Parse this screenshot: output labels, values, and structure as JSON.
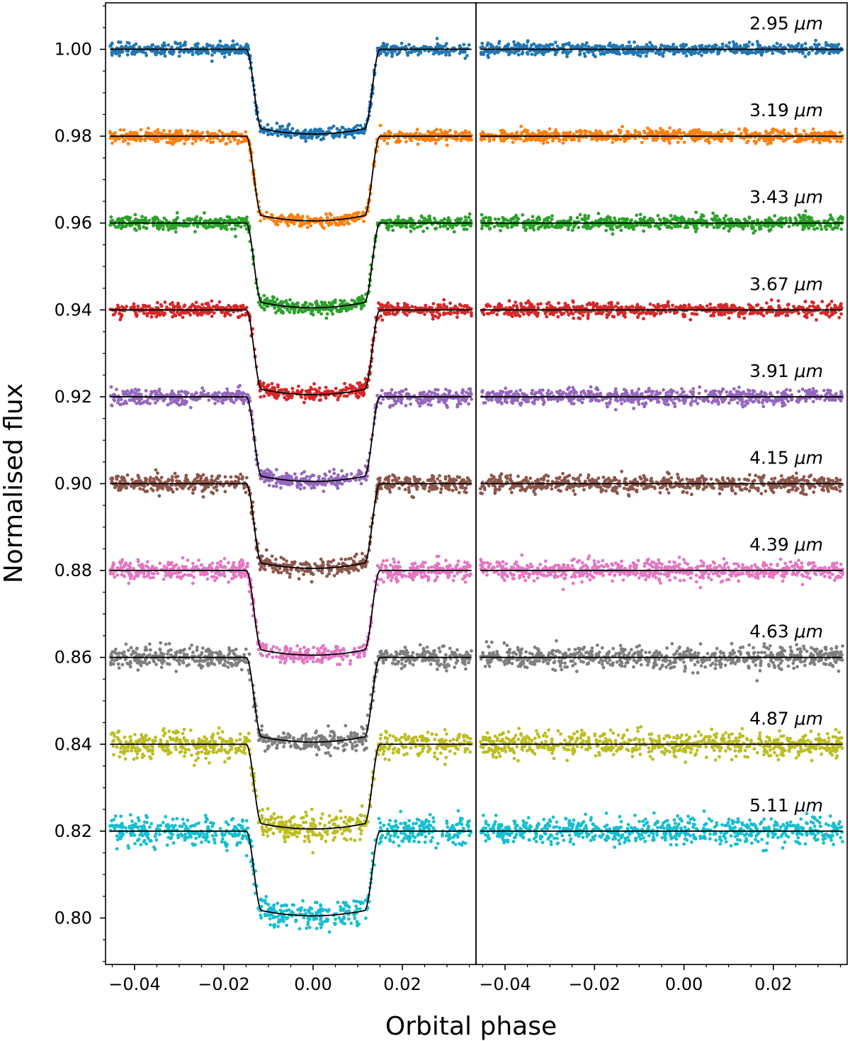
{
  "chart_data": {
    "type": "scatter",
    "ylabel": "Normalised flux",
    "xlabel": "Orbital phase",
    "ylim": [
      0.7893,
      1.0107
    ],
    "grid": false,
    "panels": [
      {
        "name": "transit",
        "xlim": [
          -0.0465,
          0.0365
        ]
      },
      {
        "name": "comparison",
        "xlim": [
          -0.0465,
          0.0365
        ]
      }
    ],
    "x_ticks": [
      "−0.04",
      "−0.02",
      "0.00",
      "0.02"
    ],
    "x_tick_values": [
      -0.04,
      -0.02,
      0.0,
      0.02
    ],
    "y_ticks": [
      "1.00",
      "0.98",
      "0.96",
      "0.94",
      "0.92",
      "0.90",
      "0.88",
      "0.86",
      "0.84",
      "0.82",
      "0.80"
    ],
    "y_tick_values": [
      1.0,
      0.98,
      0.96,
      0.94,
      0.92,
      0.9,
      0.88,
      0.86,
      0.84,
      0.82,
      0.8
    ],
    "model": {
      "phase_range": [
        -0.0455,
        0.0355
      ],
      "transit_contact_1": -0.015,
      "transit_contact_2": -0.0115,
      "transit_contact_3": 0.0115,
      "transit_contact_4": 0.015,
      "transit_depth_at_mid": 0.0195,
      "transit_depth_at_contact_2": 0.0183,
      "points_per_panel": 700
    },
    "series": [
      {
        "name": "2.95 um",
        "label": "2.95",
        "unit": "μm",
        "baseline": 1.0,
        "color": "#1f77b4",
        "scatter": 0.0007
      },
      {
        "name": "3.19 um",
        "label": "3.19",
        "unit": "μm",
        "baseline": 0.98,
        "color": "#ff7f0e",
        "scatter": 0.0007
      },
      {
        "name": "3.43 um",
        "label": "3.43",
        "unit": "μm",
        "baseline": 0.96,
        "color": "#2ca02c",
        "scatter": 0.0008
      },
      {
        "name": "3.67 um",
        "label": "3.67",
        "unit": "μm",
        "baseline": 0.94,
        "color": "#d62728",
        "scatter": 0.0008
      },
      {
        "name": "3.91 um",
        "label": "3.91",
        "unit": "μm",
        "baseline": 0.92,
        "color": "#9467bd",
        "scatter": 0.0009
      },
      {
        "name": "4.15 um",
        "label": "4.15",
        "unit": "μm",
        "baseline": 0.9,
        "color": "#8c564b",
        "scatter": 0.001
      },
      {
        "name": "4.39 um",
        "label": "4.39",
        "unit": "μm",
        "baseline": 0.88,
        "color": "#e377c2",
        "scatter": 0.0011
      },
      {
        "name": "4.63 um",
        "label": "4.63",
        "unit": "μm",
        "baseline": 0.86,
        "color": "#7f7f7f",
        "scatter": 0.0013
      },
      {
        "name": "4.87 um",
        "label": "4.87",
        "unit": "μm",
        "baseline": 0.84,
        "color": "#bcbd22",
        "scatter": 0.0015
      },
      {
        "name": "5.11 um",
        "label": "5.11",
        "unit": "μm",
        "baseline": 0.82,
        "color": "#17becf",
        "scatter": 0.0016
      }
    ]
  }
}
